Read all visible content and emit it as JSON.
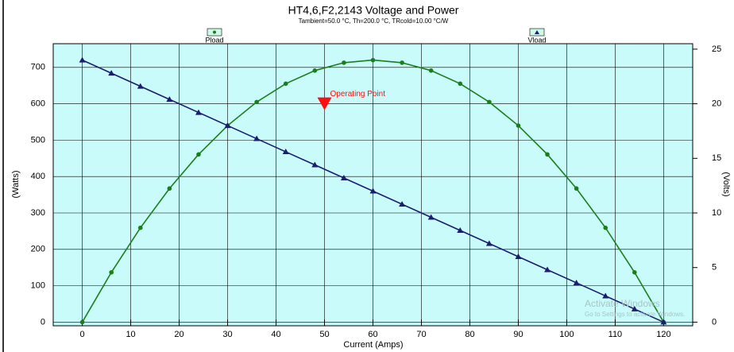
{
  "chart_data": {
    "type": "line",
    "title": "HT4,6,F2,2143 Voltage and Power",
    "subtitle": "Tambient=50.0 °C, Th=200.0 °C, TRcold=10.00 °C/W",
    "x_label": "Current (Amps)",
    "y_label": "(Watts)",
    "y2_label": "(Volts)",
    "x": [
      0,
      6,
      12,
      18,
      24,
      30,
      36,
      42,
      48,
      54,
      60,
      66,
      72,
      78,
      84,
      90,
      96,
      102,
      108,
      114,
      120
    ],
    "series": [
      {
        "name": "Pload",
        "color": "#1a7f1a",
        "marker": "circle",
        "values": [
          0,
          136.8,
          259.2,
          367.2,
          460.8,
          540,
          604.8,
          655.2,
          691.2,
          712.8,
          720,
          712.8,
          691.2,
          655.2,
          604.8,
          540,
          460.8,
          367.2,
          259.2,
          136.8,
          0
        ]
      },
      {
        "name": "Vload",
        "color": "#1c1c70",
        "marker": "triangle",
        "axis": "y2",
        "values": [
          24,
          22.8,
          21.6,
          20.4,
          19.2,
          18,
          16.8,
          15.6,
          14.4,
          13.2,
          12,
          10.8,
          9.6,
          8.4,
          7.2,
          6,
          4.8,
          3.6,
          2.4,
          1.2,
          0
        ]
      }
    ],
    "xlim": [
      -6,
      126
    ],
    "xticks": [
      0,
      10,
      20,
      30,
      40,
      50,
      60,
      70,
      80,
      90,
      100,
      110,
      120
    ],
    "ylim": [
      -10,
      765
    ],
    "yticks": [
      0,
      100,
      200,
      300,
      400,
      500,
      600,
      700
    ],
    "y2lim": [
      -0.333,
      25.5
    ],
    "y2ticks": [
      0,
      5,
      10,
      15,
      20,
      25
    ],
    "grid": true,
    "background": "#c9fbfb",
    "annotations": [
      {
        "text": "Operating Point",
        "x": 50,
        "y": 600,
        "color": "#ff1010"
      }
    ],
    "watermark": [
      "Activate Windows",
      "Go to Settings to activate Windows."
    ]
  }
}
